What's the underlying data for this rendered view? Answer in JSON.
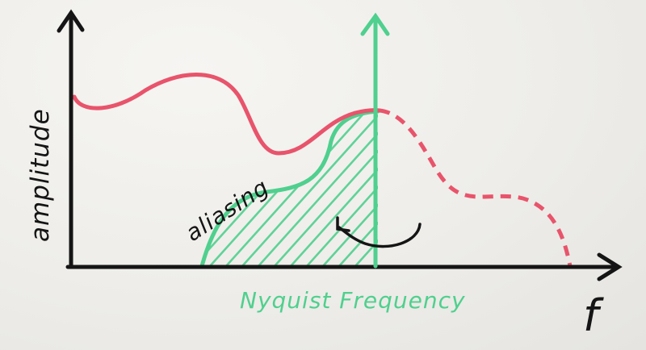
{
  "labels": {
    "y_axis": "amplitude",
    "x_axis": "f",
    "nyquist": "Nyquist Frequency",
    "aliasing": "aliasing"
  },
  "colors": {
    "ink_black": "#151515",
    "signal_red": "#e8546b",
    "nyquist_green": "#4fd08e",
    "board": "#eeedea"
  },
  "icons": {
    "fold_arrow": "curved-arrow-left-icon"
  }
}
